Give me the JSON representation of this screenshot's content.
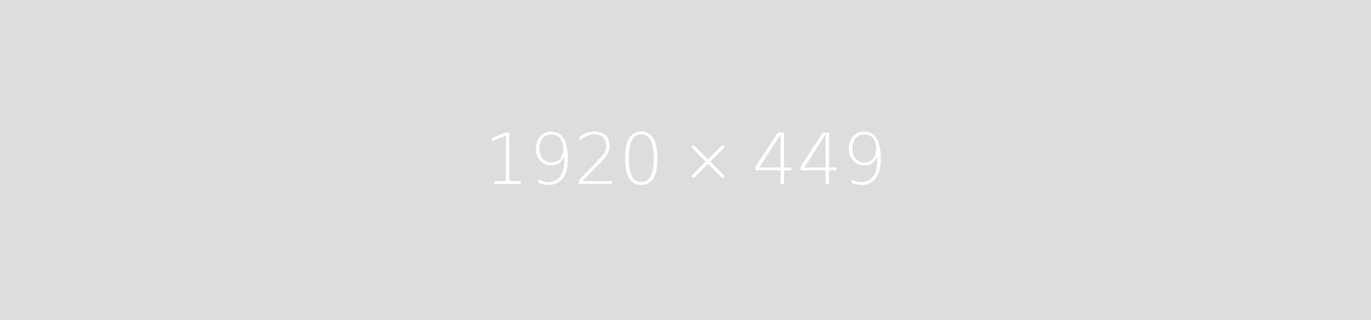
{
  "placeholder": {
    "width_label": "1920",
    "separator": "×",
    "height_label": "449",
    "background_color": "#dddddd",
    "text_color": "#ffffff"
  }
}
